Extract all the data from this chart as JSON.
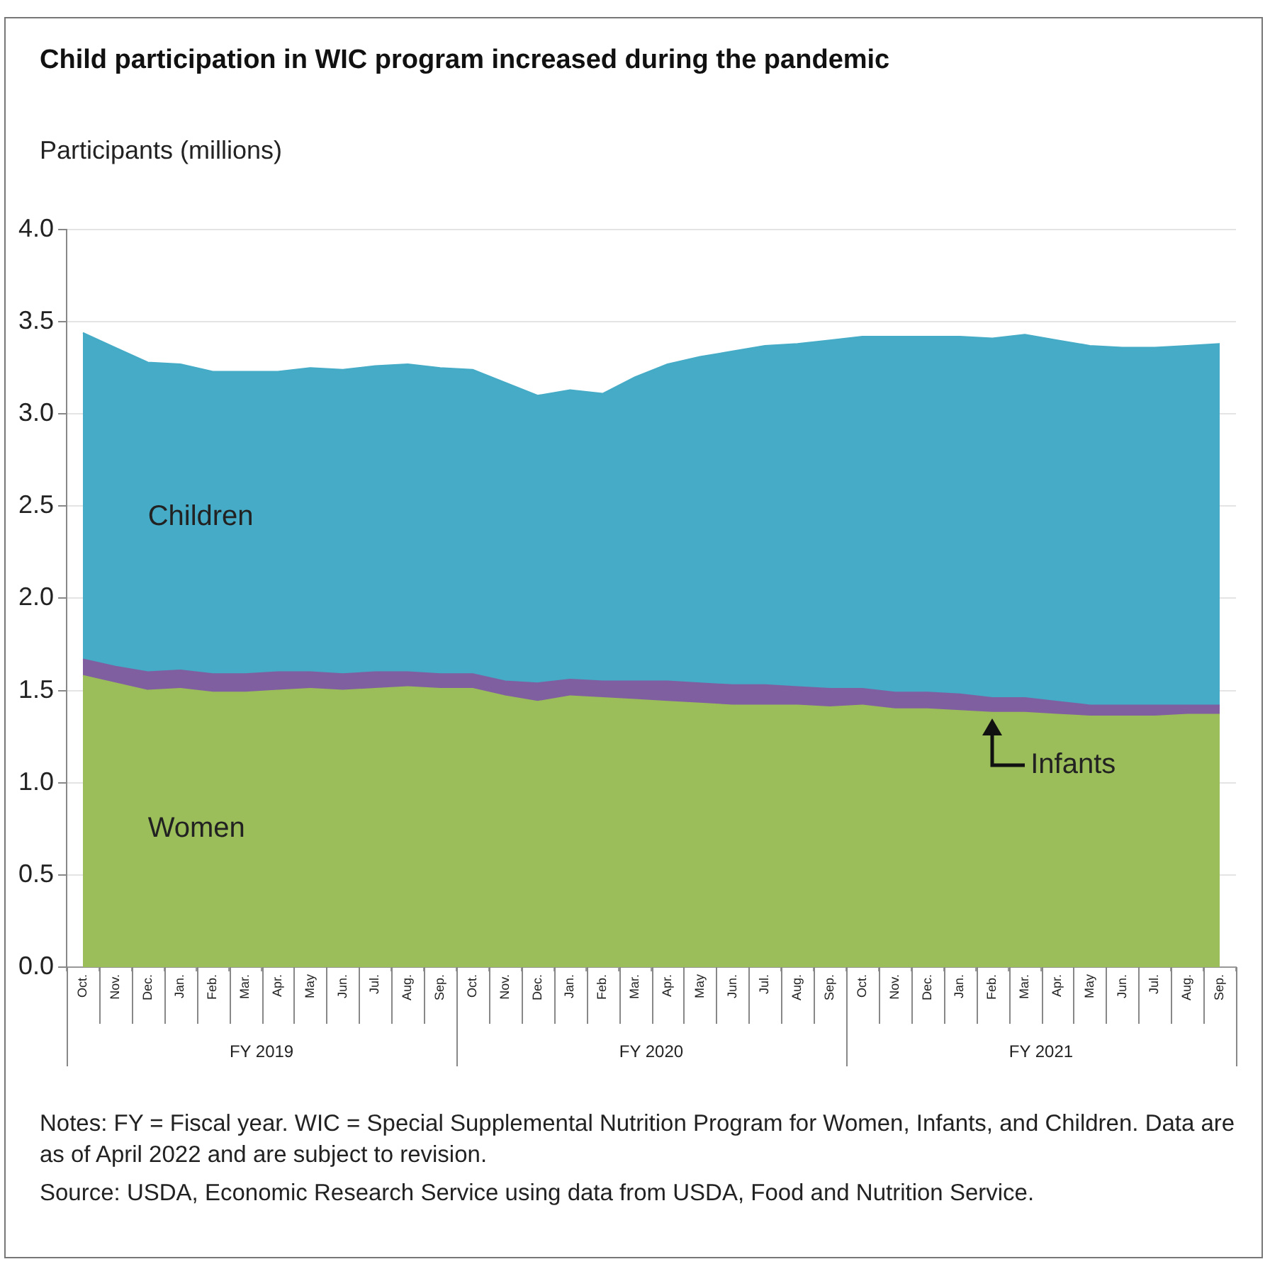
{
  "chart_data": {
    "type": "area",
    "title": "Child participation in WIC program increased during the pandemic",
    "ylabel": "Participants (millions)",
    "categories": [
      "Oct.",
      "Nov.",
      "Dec.",
      "Jan.",
      "Feb.",
      "Mar.",
      "Apr.",
      "May",
      "Jun.",
      "Jul.",
      "Aug.",
      "Sep.",
      "Oct.",
      "Nov.",
      "Dec.",
      "Jan.",
      "Feb.",
      "Mar.",
      "Apr.",
      "May",
      "Jun.",
      "Jul.",
      "Aug.",
      "Sep.",
      "Oct.",
      "Nov.",
      "Dec.",
      "Jan.",
      "Feb.",
      "Mar.",
      "Apr.",
      "May",
      "Jun.",
      "Jul.",
      "Aug.",
      "Sep."
    ],
    "stacked": true,
    "series": [
      {
        "name": "Women",
        "color": "#9bbd5a",
        "values": [
          1.58,
          1.54,
          1.5,
          1.51,
          1.49,
          1.49,
          1.5,
          1.51,
          1.5,
          1.51,
          1.52,
          1.51,
          1.51,
          1.47,
          1.44,
          1.47,
          1.46,
          1.45,
          1.44,
          1.43,
          1.42,
          1.42,
          1.42,
          1.41,
          1.42,
          1.4,
          1.4,
          1.39,
          1.38,
          1.38,
          1.37,
          1.36,
          1.36,
          1.36,
          1.37,
          1.37
        ]
      },
      {
        "name": "Infants",
        "color": "#7f5fa0",
        "values": [
          0.09,
          0.09,
          0.1,
          0.1,
          0.1,
          0.1,
          0.1,
          0.09,
          0.09,
          0.09,
          0.08,
          0.08,
          0.08,
          0.08,
          0.1,
          0.09,
          0.09,
          0.1,
          0.11,
          0.11,
          0.11,
          0.11,
          0.1,
          0.1,
          0.09,
          0.09,
          0.09,
          0.09,
          0.08,
          0.08,
          0.07,
          0.06,
          0.06,
          0.06,
          0.05,
          0.05
        ]
      },
      {
        "name": "Children",
        "color": "#45abc6",
        "values": [
          1.77,
          1.73,
          1.68,
          1.66,
          1.64,
          1.64,
          1.63,
          1.65,
          1.65,
          1.66,
          1.67,
          1.66,
          1.65,
          1.62,
          1.56,
          1.57,
          1.56,
          1.65,
          1.72,
          1.77,
          1.81,
          1.84,
          1.86,
          1.89,
          1.91,
          1.93,
          1.93,
          1.94,
          1.95,
          1.97,
          1.96,
          1.95,
          1.94,
          1.94,
          1.95,
          1.96
        ]
      }
    ],
    "ylim": [
      0,
      4
    ],
    "yticks": [
      {
        "value": 0,
        "label": "0.0"
      },
      {
        "value": 0.5,
        "label": "0.5"
      },
      {
        "value": 1,
        "label": "1.0"
      },
      {
        "value": 1.5,
        "label": "1.5"
      },
      {
        "value": 2,
        "label": "2.0"
      },
      {
        "value": 2.5,
        "label": "2.5"
      },
      {
        "value": 3,
        "label": "3.0"
      },
      {
        "value": 3.5,
        "label": "3.5"
      },
      {
        "value": 4,
        "label": "4.0"
      }
    ],
    "grid": "y",
    "legend": false,
    "annotations": [
      "FY 2019",
      "FY 2020",
      "FY 2021",
      "Notes: FY = Fiscal year. WIC = Special Supplemental Nutrition Program for Women, Infants, and Children. Data are as of April 2022 and are subject to revision.",
      "Source: USDA, Economic Research Service using data from USDA, Food and Nutrition Service."
    ]
  }
}
